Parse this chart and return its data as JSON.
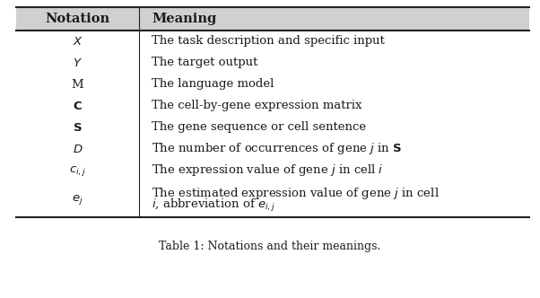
{
  "title": "Table 1: Notations and their meanings.",
  "header_col1": "Notation",
  "header_col2": "Meaning",
  "notations": [
    "$X$",
    "$Y$",
    "M",
    "$\\mathbf{C}$",
    "$\\mathbf{S}$",
    "$D$",
    "$c_{i,j}$",
    "$e_j$"
  ],
  "meanings": [
    "The task description and specific input",
    "The target output",
    "The language model",
    "The cell-by-gene expression matrix",
    "The gene sequence or cell sentence",
    "The number of occurrences of gene $j$ in $\\mathbf{S}$",
    "The expression value of gene $j$ in cell $i$",
    "The estimated expression value of gene $j$ in cell $i$, abbreviation of $e_{i,j}$"
  ],
  "meaning_line2": [
    "",
    "",
    "",
    "",
    "",
    "",
    "",
    "$i$, abbreviation of $e_{i,j}$"
  ],
  "meaning_line1": [
    "",
    "",
    "",
    "",
    "",
    "",
    "",
    "The estimated expression value of gene $j$ in cell"
  ],
  "bg_color": "#ffffff",
  "text_color": "#1a1a1a",
  "header_bg": "#d0d0d0",
  "line_color": "#222222",
  "font_size": 9.5,
  "header_font_size": 10.5,
  "caption_font_size": 9
}
